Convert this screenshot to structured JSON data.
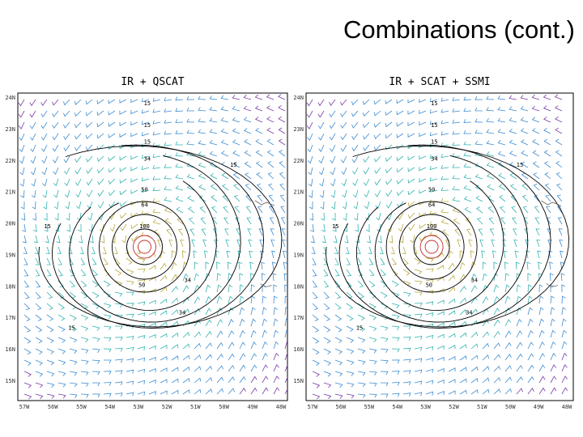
{
  "title": "Combinations (cont.)",
  "lat_labels": [
    "24N",
    "23N",
    "22N",
    "21N",
    "20N",
    "19N",
    "18N",
    "17N",
    "16N",
    "15N"
  ],
  "lon_labels": [
    "57W",
    "56W",
    "55W",
    "54W",
    "53W",
    "52W",
    "51W",
    "50W",
    "49W",
    "48W"
  ],
  "panels": [
    {
      "title": "IR + QSCAT",
      "contour_labels": [
        "15",
        "15",
        "15",
        "34",
        "15",
        "50",
        "64",
        "100",
        "50",
        "34",
        "34",
        "15",
        "15"
      ]
    },
    {
      "title": "IR + SCAT + SSMI",
      "contour_labels": [
        "15",
        "15",
        "15",
        "34",
        "15",
        "50",
        "64",
        "100",
        "50",
        "34",
        "34",
        "15",
        "15"
      ]
    }
  ]
}
